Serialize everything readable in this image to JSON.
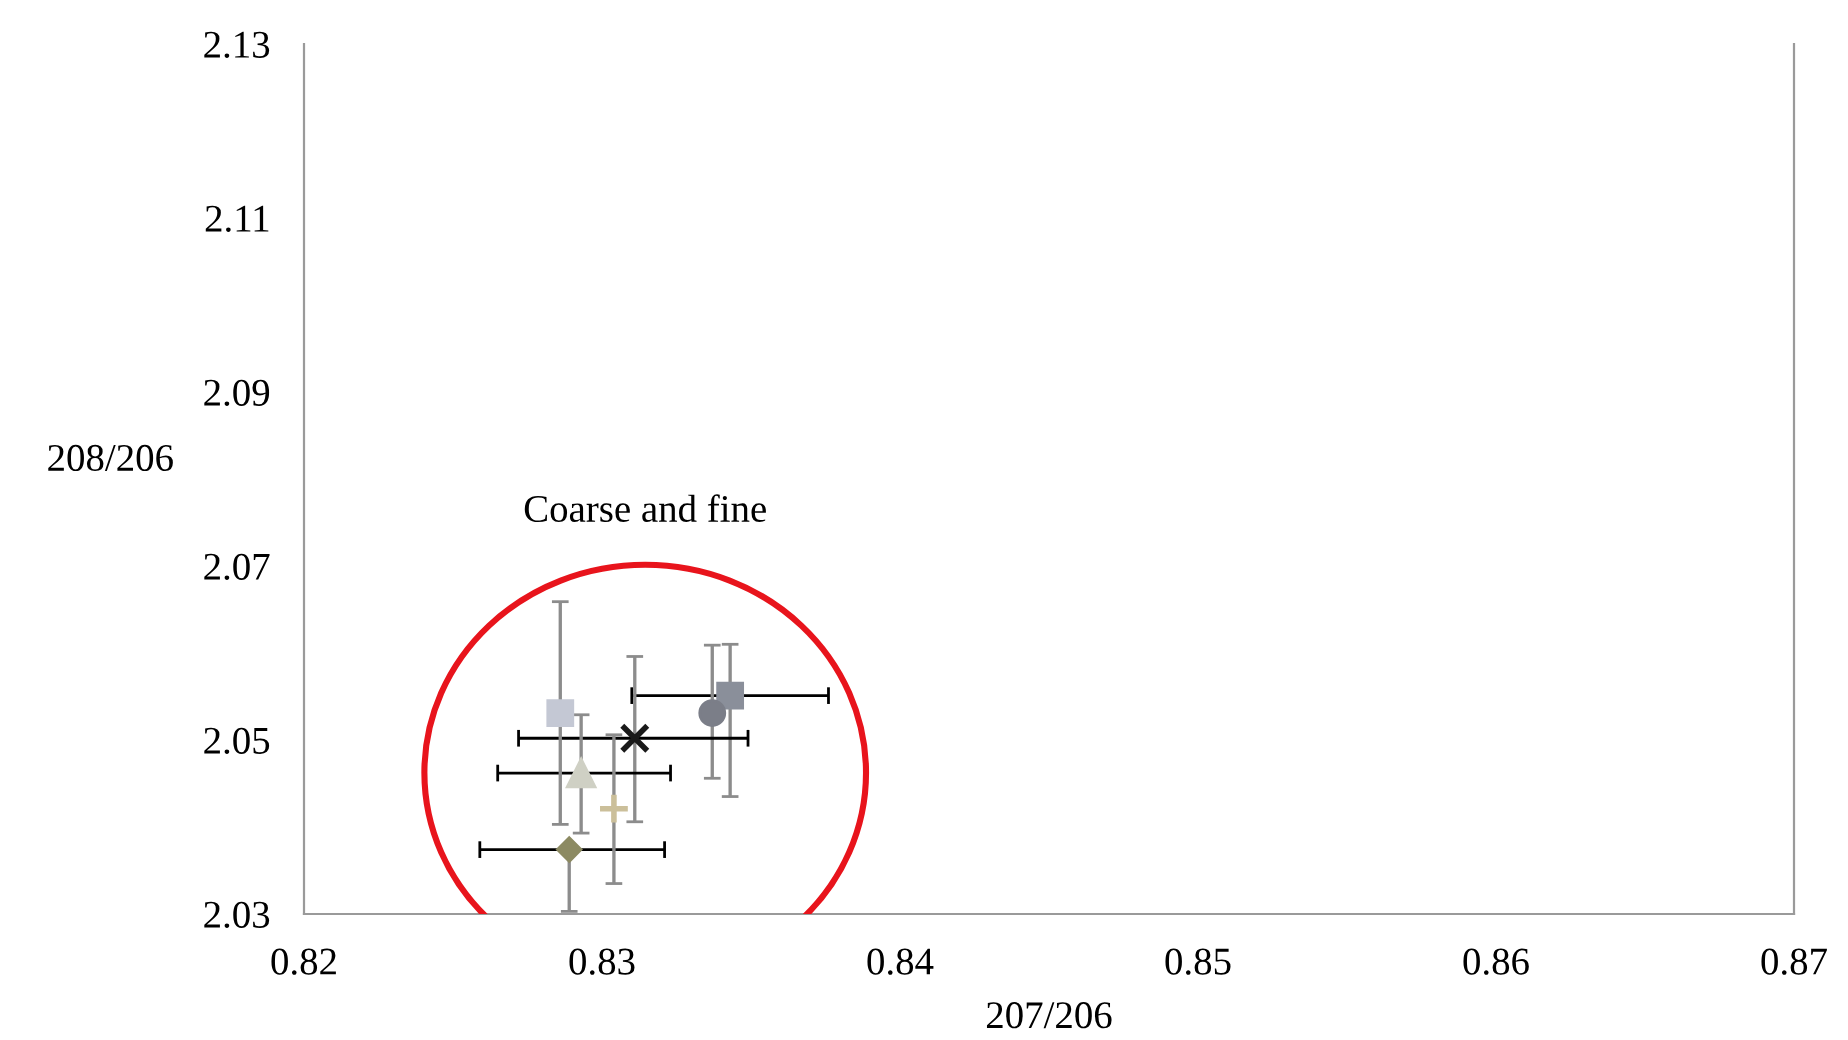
{
  "chart_data": {
    "type": "scatter",
    "xlabel": "207/206",
    "ylabel": "208/206",
    "annotations": [
      "Coarse and fine"
    ],
    "xlim": [
      0.82,
      0.87
    ],
    "xticks": [
      0.82,
      0.83,
      0.84,
      0.85,
      0.86,
      0.87
    ],
    "ylim": [
      2.03,
      2.13
    ],
    "yticks": [
      2.03,
      2.05,
      2.07,
      2.09,
      2.11,
      2.13
    ],
    "grid": false,
    "legend": false,
    "series": [
      {
        "color": "#8a8f9a",
        "marker": "square",
        "x": [
          0.8343
        ],
        "values": [
          2.0551
        ],
        "xerrors": [
          [
            0.831,
            0.8376
          ]
        ],
        "errors": [
          [
            2.0435,
            2.061
          ]
        ]
      },
      {
        "color": "#7b7e88",
        "marker": "circle",
        "x": [
          0.8337
        ],
        "values": [
          2.0531
        ],
        "errors": [
          [
            2.0456,
            2.0609
          ]
        ]
      },
      {
        "color": "#1a1a1a",
        "marker": "cross",
        "x": [
          0.8311
        ],
        "values": [
          2.0502
        ],
        "xerrors": [
          [
            0.8272,
            0.8349
          ]
        ],
        "errors": [
          [
            2.0406,
            2.0596
          ]
        ]
      },
      {
        "color": "#cfd0c4",
        "marker": "triangle",
        "x": [
          0.8293
        ],
        "values": [
          2.0462
        ],
        "xerrors": [
          [
            0.8265,
            0.8323
          ]
        ],
        "errors": [
          [
            2.0393,
            2.0529
          ]
        ]
      },
      {
        "color": "#8c8a62",
        "marker": "diamond",
        "x": [
          0.8289
        ],
        "values": [
          2.0374
        ],
        "xerrors": [
          [
            0.8259,
            0.8321
          ]
        ],
        "errors": [
          [
            2.0303,
            2.0374
          ]
        ]
      },
      {
        "color": "#cbbf9a",
        "marker": "plus",
        "x": [
          0.8304
        ],
        "values": [
          2.0421
        ],
        "errors": [
          [
            2.0335,
            2.0506
          ]
        ]
      },
      {
        "color": "#c4c8d4",
        "marker": "square",
        "x": [
          0.8286
        ],
        "values": [
          2.0531
        ],
        "errors": [
          [
            2.0403,
            2.0659
          ]
        ]
      }
    ]
  }
}
